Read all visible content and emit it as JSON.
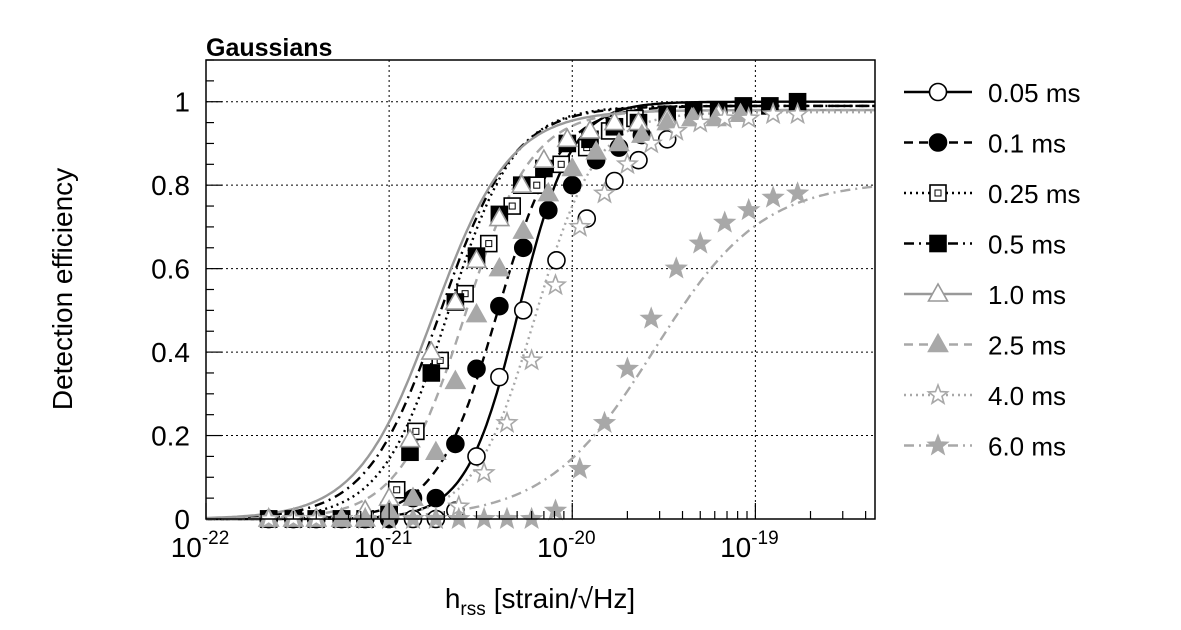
{
  "chart_data": {
    "type": "line",
    "title": "Gaussians",
    "ylabel": "Detection efficiency",
    "xlabel": {
      "base": "h",
      "sub": "rss",
      "unit": "[strain/√Hz]"
    },
    "x_scale": "log",
    "xlim": [
      1e-22,
      4.5e-19
    ],
    "ylim": [
      0,
      1.1
    ],
    "x_ticks": [
      {
        "base": "10",
        "exp": "-22"
      },
      {
        "base": "10",
        "exp": "-21"
      },
      {
        "base": "10",
        "exp": "-20"
      },
      {
        "base": "10",
        "exp": "-19"
      }
    ],
    "y_ticks": [
      "0",
      "0.2",
      "0.4",
      "0.6",
      "0.8",
      "1"
    ],
    "grid": true,
    "legend_position": "right",
    "series": [
      {
        "name": "0.05 ms",
        "color": "#000000",
        "dash": "solid",
        "marker": "circle",
        "filled": false,
        "fit": {
          "x50": 5.1e-21,
          "k": 7.0,
          "ymax": 1.0
        },
        "x": [
          2.2e-22,
          3e-22,
          4e-22,
          5.5e-22,
          7.4e-22,
          1e-21,
          1.35e-21,
          1.8e-21,
          2.3e-21,
          3e-21,
          4e-21,
          5.4e-21,
          8.2e-21,
          1.2e-20,
          1.7e-20,
          2.3e-20,
          3.3e-20
        ],
        "y": [
          0,
          0,
          0,
          0,
          0,
          0,
          0,
          0,
          0.02,
          0.15,
          0.34,
          0.5,
          0.62,
          0.72,
          0.81,
          0.86,
          0.91
        ]
      },
      {
        "name": "0.1 ms",
        "color": "#000000",
        "dash": "dashed",
        "marker": "circle",
        "filled": true,
        "fit": {
          "x50": 3.9e-21,
          "k": 6.0,
          "ymax": 0.99
        },
        "x": [
          2.2e-22,
          3e-22,
          4e-22,
          5.5e-22,
          7.4e-22,
          1e-21,
          1.35e-21,
          1.8e-21,
          2.3e-21,
          3e-21,
          4e-21,
          5.4e-21,
          7.4e-21,
          1e-20,
          1.35e-20,
          1.8e-20,
          2.4e-20
        ],
        "y": [
          0,
          0,
          0,
          0,
          0,
          0,
          0.05,
          0.05,
          0.18,
          0.36,
          0.51,
          0.65,
          0.74,
          0.8,
          0.86,
          0.89,
          0.92
        ]
      },
      {
        "name": "0.25 ms",
        "color": "#000000",
        "dash": "dotted",
        "marker": "square",
        "filled": false,
        "fit": {
          "x50": 2.1e-21,
          "k": 5.5,
          "ymax": 0.99
        },
        "x": [
          2.2e-22,
          3e-22,
          4e-22,
          5.5e-22,
          7.4e-22,
          1e-21,
          1.1e-21,
          1.4e-21,
          1.9e-21,
          2.6e-21,
          3.5e-21,
          4.7e-21,
          6.4e-21,
          8.7e-21,
          1.2e-20,
          1.6e-20,
          2.2e-20
        ],
        "y": [
          0,
          0,
          0,
          0,
          0,
          0.02,
          0.07,
          0.21,
          0.38,
          0.54,
          0.66,
          0.75,
          0.8,
          0.85,
          0.89,
          0.93,
          0.96
        ]
      },
      {
        "name": "0.5 ms",
        "color": "#000000",
        "dash": "dashdot",
        "marker": "square",
        "filled": true,
        "fit": {
          "x50": 1.9e-21,
          "k": 5.0,
          "ymax": 0.99
        },
        "x": [
          2.2e-22,
          3e-22,
          4e-22,
          5.5e-22,
          7.4e-22,
          1e-21,
          1.3e-21,
          1.7e-21,
          2.3e-21,
          3e-21,
          4e-21,
          5.3e-21,
          7e-21,
          9.4e-21,
          1.25e-20,
          1.7e-20,
          2.3e-20,
          3.3e-20,
          4.6e-20,
          6.3e-20,
          8.6e-20,
          1.2e-19,
          1.7e-19
        ],
        "y": [
          0,
          0,
          0,
          0,
          0,
          0.02,
          0.16,
          0.35,
          0.52,
          0.63,
          0.73,
          0.8,
          0.84,
          0.9,
          0.91,
          0.94,
          0.95,
          0.97,
          0.98,
          0.98,
          0.99,
          0.99,
          1.0
        ]
      },
      {
        "name": "1.0 ms",
        "color": "#999999",
        "dash": "solid",
        "marker": "triangle",
        "filled": false,
        "fit": {
          "x50": 1.75e-21,
          "k": 4.8,
          "ymax": 0.98
        },
        "x": [
          2.2e-22,
          3e-22,
          4e-22,
          5.5e-22,
          7.4e-22,
          1e-21,
          1.3e-21,
          1.7e-21,
          2.3e-21,
          3e-21,
          4e-21,
          5.3e-21,
          7e-21,
          9.4e-21,
          1.25e-20,
          1.7e-20,
          2.3e-20,
          3.3e-20,
          4.6e-20,
          6.3e-20
        ],
        "y": [
          0,
          0,
          0,
          0,
          0.02,
          0.05,
          0.19,
          0.4,
          0.52,
          0.62,
          0.72,
          0.8,
          0.86,
          0.91,
          0.93,
          0.95,
          0.95,
          0.96,
          0.96,
          0.97
        ]
      },
      {
        "name": "2.5 ms",
        "color": "#a8a8a8",
        "dash": "dashed",
        "marker": "triangle",
        "filled": true,
        "fit": {
          "x50": 2.6e-21,
          "k": 5.5,
          "ymax": 0.98
        },
        "x": [
          2.2e-22,
          3e-22,
          4e-22,
          5.5e-22,
          7.4e-22,
          1e-21,
          1.35e-21,
          1.8e-21,
          2.3e-21,
          3e-21,
          4e-21,
          5.4e-21,
          7.4e-21,
          1e-20,
          1.35e-20,
          1.8e-20,
          2.4e-20,
          3.3e-20,
          4.5e-20,
          6.1e-20,
          8.3e-20
        ],
        "y": [
          0,
          0,
          0,
          0,
          0,
          0.02,
          0.05,
          0.16,
          0.33,
          0.49,
          0.6,
          0.69,
          0.78,
          0.84,
          0.88,
          0.9,
          0.92,
          0.95,
          0.96,
          0.96,
          0.97
        ]
      },
      {
        "name": "4.0 ms",
        "color": "#a8a8a8",
        "dash": "dotted",
        "marker": "star",
        "filled": false,
        "fit": {
          "x50": 6.3e-21,
          "k": 6.0,
          "ymax": 0.975
        },
        "x": [
          2.2e-22,
          3e-22,
          4e-22,
          5.5e-22,
          7.4e-22,
          1e-21,
          1.35e-21,
          1.8e-21,
          2.4e-21,
          3.3e-21,
          4.4e-21,
          6e-21,
          8.1e-21,
          1.1e-20,
          1.5e-20,
          2e-20,
          2.7e-20,
          3.7e-20,
          5e-20,
          6.8e-20,
          9.2e-20,
          1.25e-19,
          1.7e-19
        ],
        "y": [
          0,
          0,
          0,
          0,
          0,
          0,
          0,
          0,
          0.03,
          0.11,
          0.23,
          0.38,
          0.56,
          0.7,
          0.78,
          0.85,
          0.9,
          0.93,
          0.95,
          0.96,
          0.96,
          0.97,
          0.97
        ]
      },
      {
        "name": "6.0 ms",
        "color": "#a8a8a8",
        "dash": "dashdot",
        "marker": "star",
        "filled": true,
        "fit": {
          "x50": 2.8e-20,
          "k": 3.4,
          "ymax": 0.81
        },
        "x": [
          5.5e-22,
          7.4e-22,
          1e-21,
          1.35e-21,
          1.8e-21,
          2.4e-21,
          3.3e-21,
          4.4e-21,
          6e-21,
          8.1e-21,
          1.1e-20,
          1.5e-20,
          2e-20,
          2.7e-20,
          3.7e-20,
          5e-20,
          6.8e-20,
          9.2e-20,
          1.25e-19,
          1.7e-19
        ],
        "y": [
          0,
          0,
          0,
          0,
          0,
          0,
          0,
          0,
          0,
          0.02,
          0.12,
          0.23,
          0.36,
          0.48,
          0.6,
          0.66,
          0.71,
          0.74,
          0.77,
          0.78
        ]
      }
    ]
  }
}
